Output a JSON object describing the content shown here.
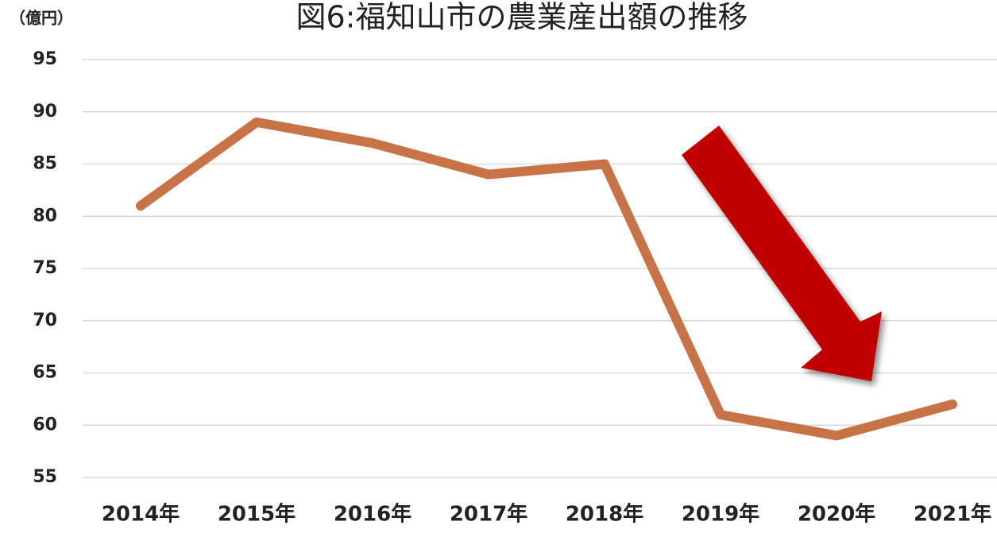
{
  "chart_data": {
    "type": "line",
    "title": "図6:福知山市の農業産出額の推移",
    "y_label": "（億円）",
    "categories": [
      "2014年",
      "2015年",
      "2016年",
      "2017年",
      "2018年",
      "2019年",
      "2020年",
      "2021年"
    ],
    "values": [
      81,
      89,
      87,
      84,
      85,
      61,
      59,
      62
    ],
    "color": "#c87248",
    "ylim": [
      55,
      95
    ],
    "yticks": [
      55,
      60,
      65,
      70,
      75,
      80,
      85,
      90,
      95
    ],
    "grid": true
  }
}
